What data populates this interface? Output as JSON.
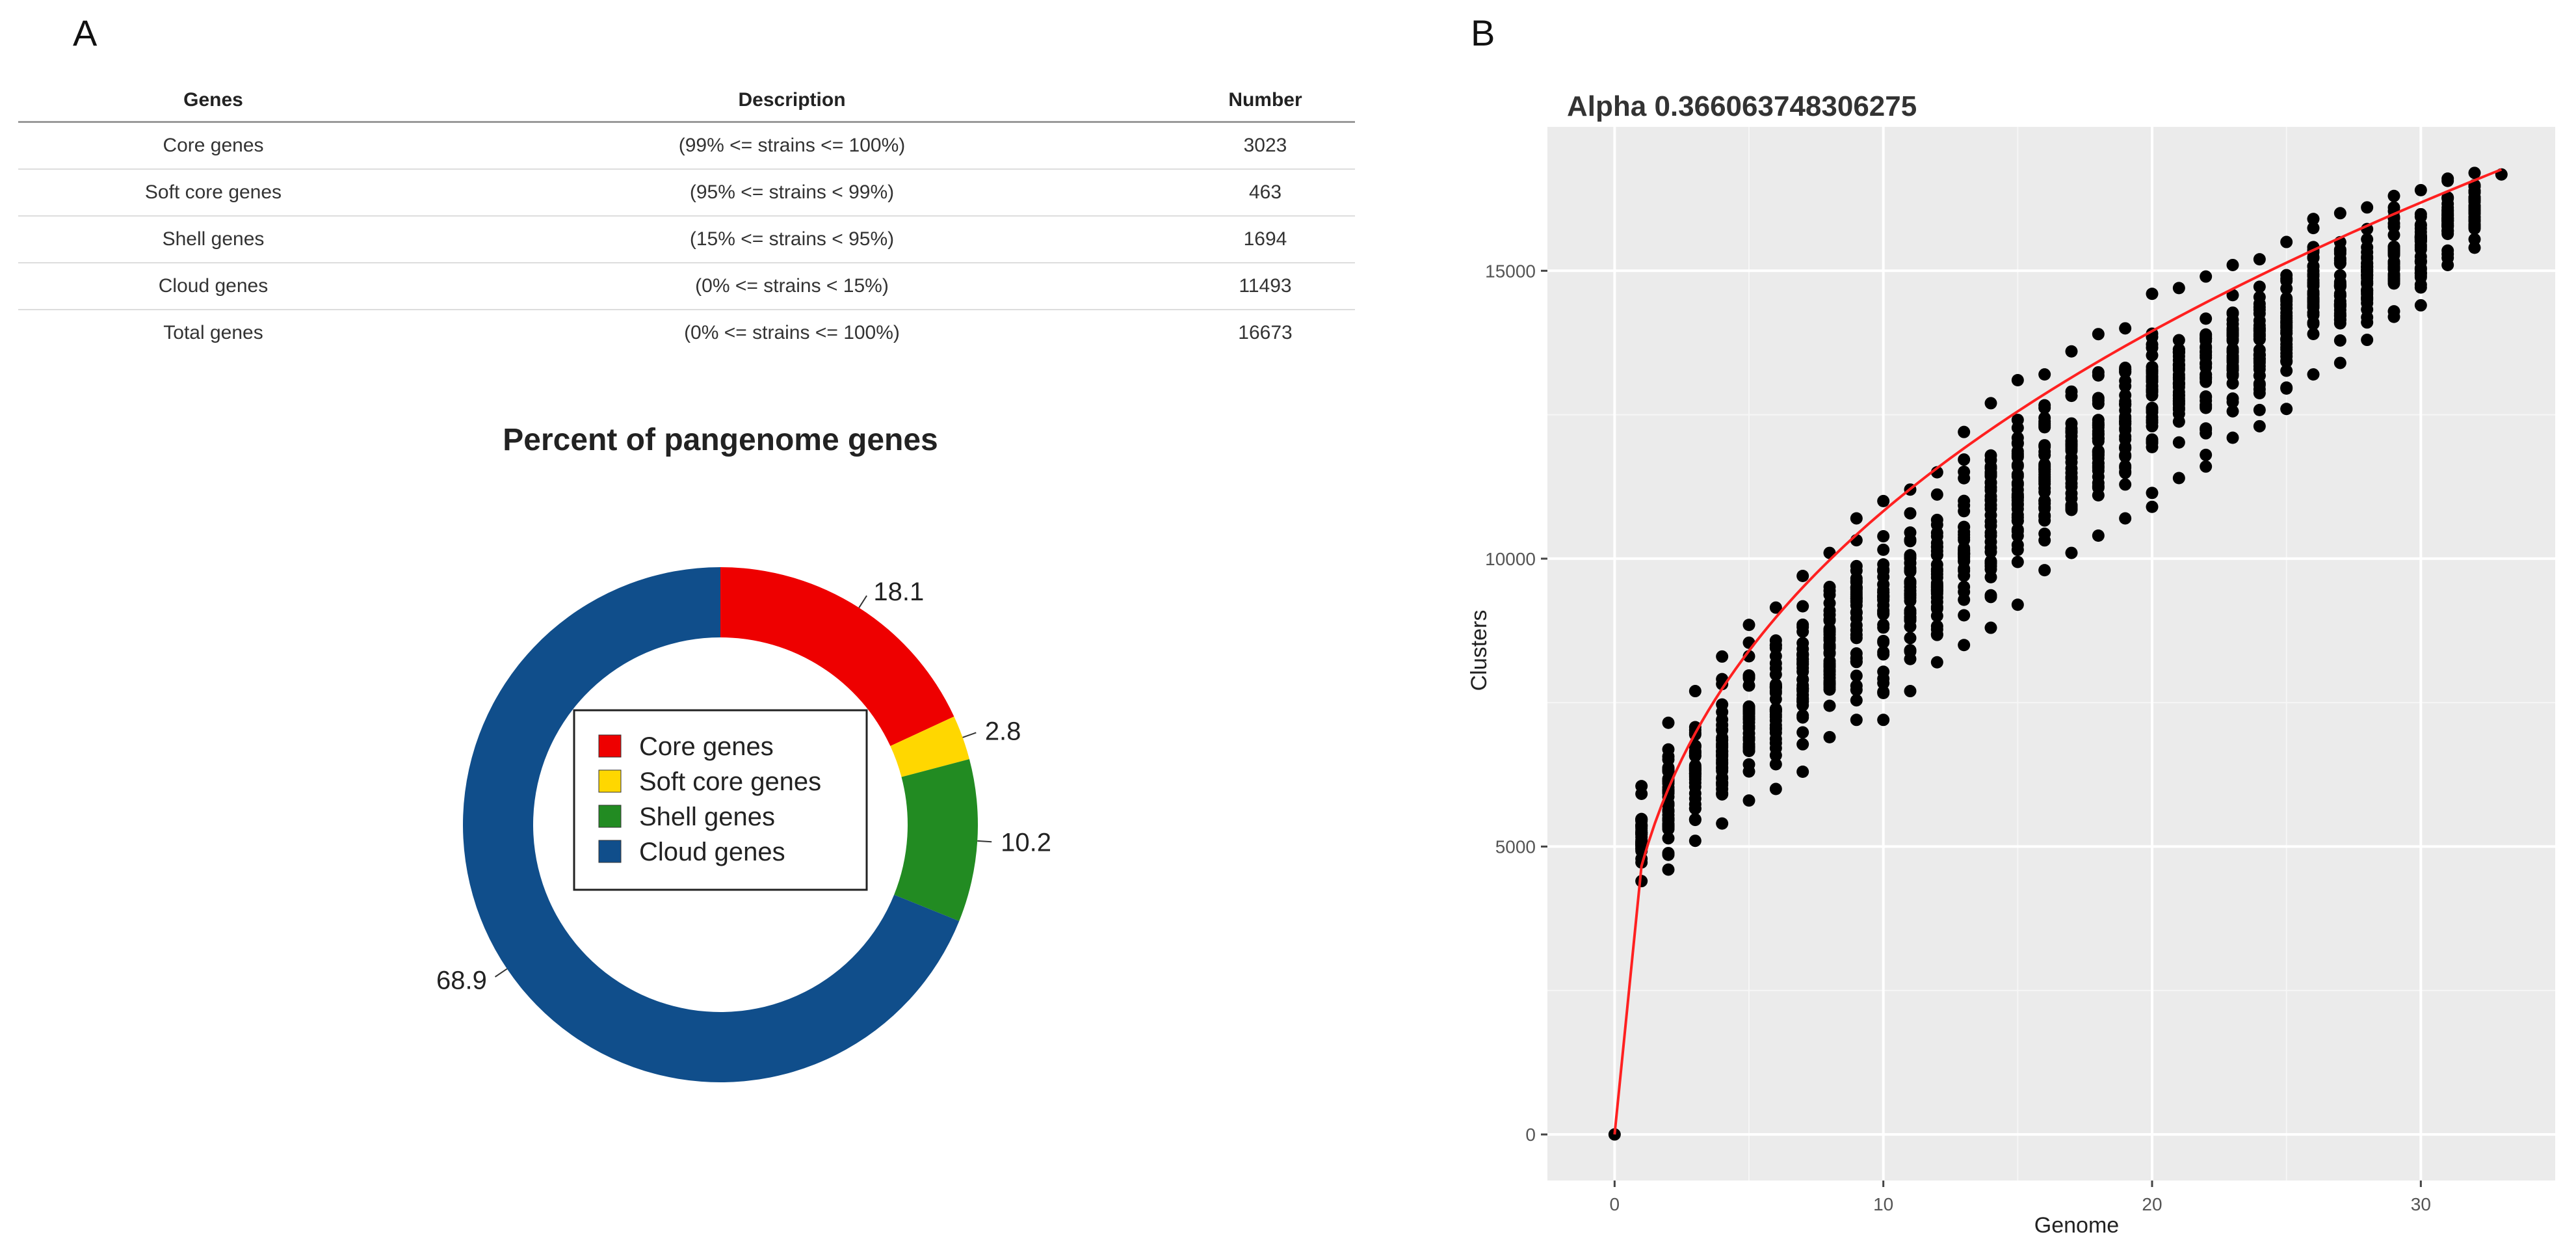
{
  "panels": {
    "a_label": "A",
    "b_label": "B"
  },
  "table": {
    "headers": [
      "Genes",
      "Description",
      "Number"
    ],
    "rows": [
      [
        "Core genes",
        "(99% <= strains <= 100%)",
        "3023"
      ],
      [
        "Soft core genes",
        "(95% <= strains < 99%)",
        "463"
      ],
      [
        "Shell genes",
        "(15% <= strains < 95%)",
        "1694"
      ],
      [
        "Cloud genes",
        "(0% <= strains < 15%)",
        "11493"
      ],
      [
        "Total genes",
        "(0% <= strains <= 100%)",
        "16673"
      ]
    ]
  },
  "chart_data": [
    {
      "type": "pie",
      "style": "donut",
      "title": "Percent of pangenome genes",
      "categories": [
        "Core genes",
        "Soft core genes",
        "Shell genes",
        "Cloud genes"
      ],
      "values": [
        18.1,
        2.8,
        10.2,
        68.9
      ],
      "labels": [
        "18.1",
        "2.8",
        "10.2",
        "68.9"
      ],
      "colors": [
        "#ee0000",
        "#ffd700",
        "#228b22",
        "#104e8b"
      ],
      "legend": "center"
    },
    {
      "type": "scatter",
      "title": "Alpha 0.366063748306275",
      "xlabel": "Genome",
      "ylabel": "Clusters",
      "xlim": [
        -2.5,
        35
      ],
      "ylim": [
        -800,
        17500
      ],
      "xticks": [
        0,
        10,
        20,
        30
      ],
      "yticks": [
        0,
        5000,
        10000,
        15000
      ],
      "xtick_labels": [
        "0",
        "10",
        "20",
        "30"
      ],
      "ytick_labels": [
        "0",
        "5000",
        "10000",
        "15000"
      ],
      "grid": true,
      "point_color": "#000000",
      "fit_color": "#ff2020",
      "fit": {
        "model": "power",
        "a": 4660,
        "alpha": 0.366063748306275
      },
      "point_ranges": [
        {
          "x": 0,
          "min": 0,
          "max": 0
        },
        {
          "x": 1,
          "min": 4400,
          "max": 6050
        },
        {
          "x": 2,
          "min": 4600,
          "max": 7150
        },
        {
          "x": 3,
          "min": 5100,
          "max": 7700
        },
        {
          "x": 4,
          "min": 5400,
          "max": 8300
        },
        {
          "x": 5,
          "min": 5800,
          "max": 8850
        },
        {
          "x": 6,
          "min": 6000,
          "max": 9150
        },
        {
          "x": 7,
          "min": 6300,
          "max": 9700
        },
        {
          "x": 8,
          "min": 6900,
          "max": 10100
        },
        {
          "x": 9,
          "min": 7200,
          "max": 10700
        },
        {
          "x": 10,
          "min": 7200,
          "max": 11000
        },
        {
          "x": 11,
          "min": 7700,
          "max": 11200
        },
        {
          "x": 12,
          "min": 8200,
          "max": 11500
        },
        {
          "x": 13,
          "min": 8500,
          "max": 12200
        },
        {
          "x": 14,
          "min": 8800,
          "max": 12700
        },
        {
          "x": 15,
          "min": 9200,
          "max": 13100
        },
        {
          "x": 16,
          "min": 9800,
          "max": 13200
        },
        {
          "x": 17,
          "min": 10100,
          "max": 13600
        },
        {
          "x": 18,
          "min": 10400,
          "max": 13900
        },
        {
          "x": 19,
          "min": 10700,
          "max": 14000
        },
        {
          "x": 20,
          "min": 10900,
          "max": 14600
        },
        {
          "x": 21,
          "min": 11400,
          "max": 14700
        },
        {
          "x": 22,
          "min": 11600,
          "max": 14900
        },
        {
          "x": 23,
          "min": 12100,
          "max": 15100
        },
        {
          "x": 24,
          "min": 12300,
          "max": 15200
        },
        {
          "x": 25,
          "min": 12600,
          "max": 15500
        },
        {
          "x": 26,
          "min": 13200,
          "max": 15900
        },
        {
          "x": 27,
          "min": 13400,
          "max": 16000
        },
        {
          "x": 28,
          "min": 13800,
          "max": 16100
        },
        {
          "x": 29,
          "min": 14200,
          "max": 16300
        },
        {
          "x": 30,
          "min": 14400,
          "max": 16400
        },
        {
          "x": 31,
          "min": 15100,
          "max": 16600
        },
        {
          "x": 32,
          "min": 15400,
          "max": 16700
        },
        {
          "x": 33,
          "min": 16673,
          "max": 16673
        }
      ]
    }
  ]
}
